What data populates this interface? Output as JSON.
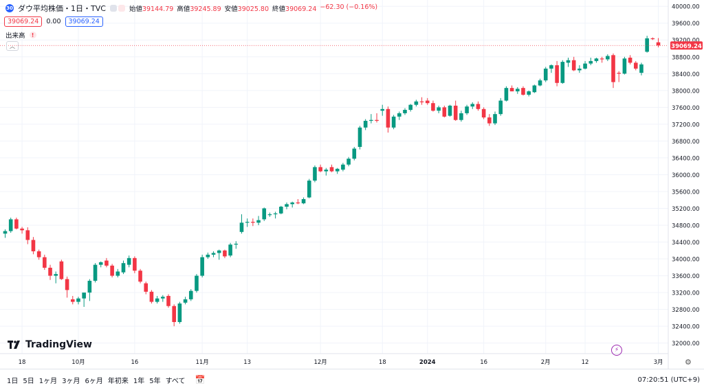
{
  "header": {
    "symbol_badge": "30",
    "title": "ダウ平均株価・1日・TVC",
    "ohlc": [
      {
        "key": "始値",
        "value": "39144.79"
      },
      {
        "key": "高値",
        "value": "39245.89"
      },
      {
        "key": "安値",
        "value": "39025.80"
      },
      {
        "key": "終値",
        "value": "39069.24"
      },
      {
        "key": "",
        "value": "−62.30 (−0.16%)"
      }
    ],
    "sell_price": "39069.24",
    "spread": "0.00",
    "buy_price": "39069.24",
    "volume_label": "出来高",
    "volume_warning": "!"
  },
  "logo_text": "TradingView",
  "bottom_bar": {
    "ranges": [
      "1日",
      "5日",
      "1ヶ月",
      "3ヶ月",
      "6ヶ月",
      "年初来",
      "1年",
      "5年",
      "すべて"
    ],
    "clock": "07:20:51 (UTC+9)"
  },
  "colors": {
    "up": "#089981",
    "down": "#f23645",
    "grid": "#f0f3fa",
    "axis_text": "#131722"
  },
  "chart_data": {
    "type": "candlestick",
    "title": "ダウ平均株価・1日・TVC",
    "y_ticks": [
      32000,
      32400,
      32800,
      33200,
      33600,
      34000,
      34400,
      34800,
      35200,
      35600,
      36000,
      36400,
      36800,
      37200,
      37600,
      38000,
      38400,
      38800,
      39200,
      39600,
      40000
    ],
    "y_tick_labels": [
      "32000.00",
      "32400.00",
      "32800.00",
      "33200.00",
      "33600.00",
      "34000.00",
      "34400.00",
      "34800.00",
      "35200.00",
      "35600.00",
      "36000.00",
      "36400.00",
      "36800.00",
      "37200.00",
      "37600.00",
      "38000.00",
      "38400.00",
      "38800.00",
      "39200.00",
      "39600.00",
      "40000.00"
    ],
    "ylim": [
      31750,
      40150
    ],
    "x_ticks": [
      {
        "label": "18",
        "index": 3
      },
      {
        "label": "10月",
        "index": 13
      },
      {
        "label": "16",
        "index": 23
      },
      {
        "label": "11月",
        "index": 35
      },
      {
        "label": "13",
        "index": 43
      },
      {
        "label": "12月",
        "index": 56
      },
      {
        "label": "18",
        "index": 67
      },
      {
        "label": "2024",
        "index": 75
      },
      {
        "label": "16",
        "index": 85
      },
      {
        "label": "2月",
        "index": 96
      },
      {
        "label": "12",
        "index": 103
      },
      {
        "label": "3月",
        "index": 116
      }
    ],
    "last_price": 39069.24,
    "last_price_label": "39069.24",
    "candles": [
      [
        34600,
        34700,
        34500,
        34660
      ],
      [
        34660,
        34980,
        34620,
        34940
      ],
      [
        34940,
        34980,
        34700,
        34720
      ],
      [
        34720,
        34760,
        34600,
        34680
      ],
      [
        34680,
        34750,
        34350,
        34450
      ],
      [
        34450,
        34520,
        34110,
        34180
      ],
      [
        34180,
        34220,
        33980,
        34040
      ],
      [
        34040,
        34100,
        33740,
        33790
      ],
      [
        33790,
        33860,
        33500,
        33600
      ],
      [
        33600,
        33700,
        33420,
        33640
      ],
      [
        33940,
        33980,
        33500,
        33520
      ],
      [
        33520,
        33580,
        33080,
        33260
      ],
      [
        33040,
        33120,
        32920,
        32980
      ],
      [
        32980,
        33100,
        32920,
        33060
      ],
      [
        33060,
        33180,
        32860,
        33200
      ],
      [
        33200,
        33520,
        33000,
        33480
      ],
      [
        33480,
        33900,
        33440,
        33860
      ],
      [
        33860,
        33940,
        33800,
        33920
      ],
      [
        33960,
        34020,
        33800,
        33840
      ],
      [
        33840,
        33880,
        33560,
        33600
      ],
      [
        33600,
        33760,
        33560,
        33700
      ],
      [
        33680,
        33960,
        33640,
        33900
      ],
      [
        33860,
        34080,
        33800,
        34020
      ],
      [
        34020,
        34060,
        33660,
        33720
      ],
      [
        33720,
        33760,
        33420,
        33460
      ],
      [
        33420,
        33460,
        33160,
        33220
      ],
      [
        33220,
        33260,
        32940,
        32980
      ],
      [
        32980,
        33120,
        32940,
        33060
      ],
      [
        33060,
        33140,
        32980,
        33100
      ],
      [
        33120,
        33160,
        32840,
        32880
      ],
      [
        32880,
        32920,
        32400,
        32500
      ],
      [
        32500,
        32980,
        32460,
        32940
      ],
      [
        32960,
        33100,
        32920,
        33040
      ],
      [
        33040,
        33280,
        33000,
        33240
      ],
      [
        33240,
        33640,
        33200,
        33600
      ],
      [
        33600,
        34100,
        33560,
        34040
      ],
      [
        34040,
        34150,
        34000,
        34100
      ],
      [
        34100,
        34180,
        34040,
        34140
      ],
      [
        34140,
        34220,
        33980,
        34200
      ],
      [
        34200,
        34220,
        34020,
        34060
      ],
      [
        34080,
        34380,
        34040,
        34340
      ],
      [
        34340,
        34420,
        34240,
        34360
      ],
      [
        34640,
        35060,
        34600,
        34860
      ],
      [
        34860,
        34960,
        34760,
        34880
      ],
      [
        34880,
        34960,
        34780,
        34860
      ],
      [
        34860,
        35020,
        34800,
        34920
      ],
      [
        34940,
        35220,
        34900,
        35200
      ],
      [
        35040,
        35100,
        35000,
        35060
      ],
      [
        35060,
        35120,
        34960,
        35080
      ],
      [
        35080,
        35260,
        35060,
        35240
      ],
      [
        35240,
        35340,
        35180,
        35300
      ],
      [
        35300,
        35360,
        35220,
        35340
      ],
      [
        35340,
        35420,
        35300,
        35320
      ],
      [
        35320,
        35460,
        35300,
        35420
      ],
      [
        35460,
        35900,
        35440,
        35860
      ],
      [
        35860,
        36220,
        35820,
        36180
      ],
      [
        36180,
        36240,
        36060,
        36080
      ],
      [
        36080,
        36160,
        35980,
        36120
      ],
      [
        36180,
        36240,
        36060,
        36080
      ],
      [
        36080,
        36160,
        36020,
        36140
      ],
      [
        36120,
        36280,
        36080,
        36240
      ],
      [
        36240,
        36420,
        36200,
        36380
      ],
      [
        36380,
        36660,
        36340,
        36620
      ],
      [
        36660,
        37160,
        36600,
        37120
      ],
      [
        37120,
        37320,
        37060,
        37280
      ],
      [
        37280,
        37440,
        37220,
        37300
      ],
      [
        37300,
        37460,
        37240,
        37280
      ],
      [
        37520,
        37660,
        37400,
        37560
      ],
      [
        37560,
        37620,
        37000,
        37120
      ],
      [
        37120,
        37420,
        37080,
        37380
      ],
      [
        37380,
        37500,
        37300,
        37460
      ],
      [
        37460,
        37580,
        37420,
        37540
      ],
      [
        37540,
        37680,
        37500,
        37660
      ],
      [
        37660,
        37780,
        37620,
        37740
      ],
      [
        37740,
        37840,
        37660,
        37720
      ],
      [
        37760,
        37820,
        37660,
        37700
      ],
      [
        37700,
        37760,
        37500,
        37520
      ],
      [
        37520,
        37640,
        37460,
        37600
      ],
      [
        37600,
        37640,
        37360,
        37380
      ],
      [
        37400,
        37660,
        37380,
        37640
      ],
      [
        37640,
        37760,
        37280,
        37300
      ],
      [
        37300,
        37520,
        37260,
        37460
      ],
      [
        37460,
        37660,
        37420,
        37620
      ],
      [
        37620,
        37720,
        37560,
        37680
      ],
      [
        37680,
        37740,
        37520,
        37560
      ],
      [
        37560,
        37600,
        37320,
        37360
      ],
      [
        37360,
        37440,
        37160,
        37220
      ],
      [
        37220,
        37500,
        37180,
        37440
      ],
      [
        37440,
        37820,
        37400,
        37760
      ],
      [
        37760,
        38100,
        37740,
        38060
      ],
      [
        38060,
        38120,
        37980,
        37980
      ],
      [
        37980,
        38080,
        37920,
        38040
      ],
      [
        38060,
        38100,
        37880,
        37900
      ],
      [
        37900,
        38000,
        37860,
        37980
      ],
      [
        37960,
        38140,
        37940,
        38120
      ],
      [
        38120,
        38280,
        38100,
        38240
      ],
      [
        38240,
        38560,
        38200,
        38520
      ],
      [
        38520,
        38620,
        38420,
        38600
      ],
      [
        38600,
        38700,
        38100,
        38180
      ],
      [
        38180,
        38720,
        38160,
        38680
      ],
      [
        38660,
        38780,
        38560,
        38720
      ],
      [
        38720,
        38800,
        38460,
        38480
      ],
      [
        38480,
        38600,
        38420,
        38520
      ],
      [
        38520,
        38700,
        38500,
        38640
      ],
      [
        38640,
        38780,
        38600,
        38700
      ],
      [
        38700,
        38780,
        38660,
        38760
      ],
      [
        38760,
        38800,
        38660,
        38740
      ],
      [
        38740,
        38860,
        38700,
        38820
      ],
      [
        38840,
        38880,
        38060,
        38200
      ],
      [
        38420,
        38460,
        38200,
        38400
      ],
      [
        38400,
        38800,
        38380,
        38760
      ],
      [
        38780,
        38840,
        38620,
        38660
      ],
      [
        38660,
        38700,
        38480,
        38520
      ],
      [
        38420,
        38660,
        38360,
        38620
      ],
      [
        38920,
        39300,
        38900,
        39240
      ],
      [
        39240,
        39260,
        39200,
        39220
      ],
      [
        39144.79,
        39245.89,
        39025.8,
        39069.24
      ]
    ]
  }
}
